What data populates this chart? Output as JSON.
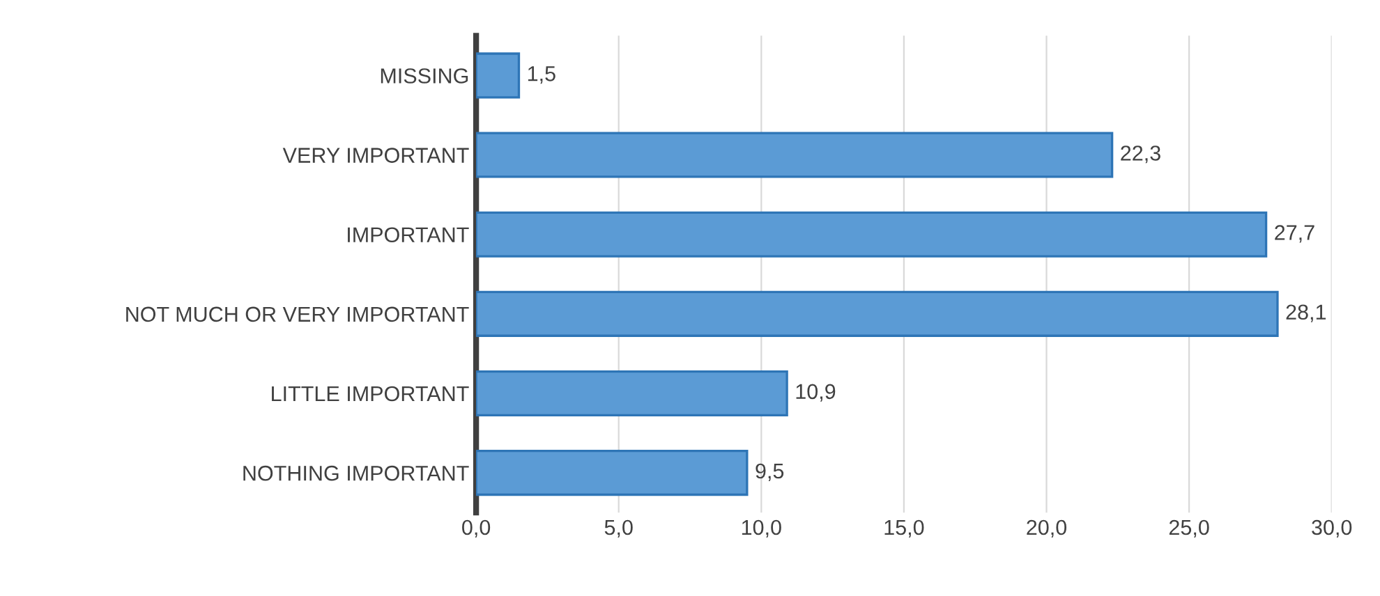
{
  "chart_data": {
    "type": "bar",
    "orientation": "horizontal",
    "categories": [
      "MISSING",
      "VERY IMPORTANT",
      "IMPORTANT",
      "NOT MUCH OR VERY IMPORTANT",
      "LITTLE IMPORTANT",
      "NOTHING IMPORTANT"
    ],
    "values": [
      1.5,
      22.3,
      27.7,
      28.1,
      10.9,
      9.5
    ],
    "value_labels": [
      "1,5",
      "22,3",
      "27,7",
      "28,1",
      "10,9",
      "9,5"
    ],
    "color": "#5b9bd5",
    "xlim": [
      0,
      30
    ],
    "xticks": [
      {
        "value": 0,
        "label": "0,0"
      },
      {
        "value": 5,
        "label": "5,0"
      },
      {
        "value": 10,
        "label": "10,0"
      },
      {
        "value": 15,
        "label": "15,0"
      },
      {
        "value": 20,
        "label": "20,0"
      },
      {
        "value": 25,
        "label": "25,0"
      },
      {
        "value": 30,
        "label": "30,0"
      }
    ],
    "grid": "x"
  }
}
